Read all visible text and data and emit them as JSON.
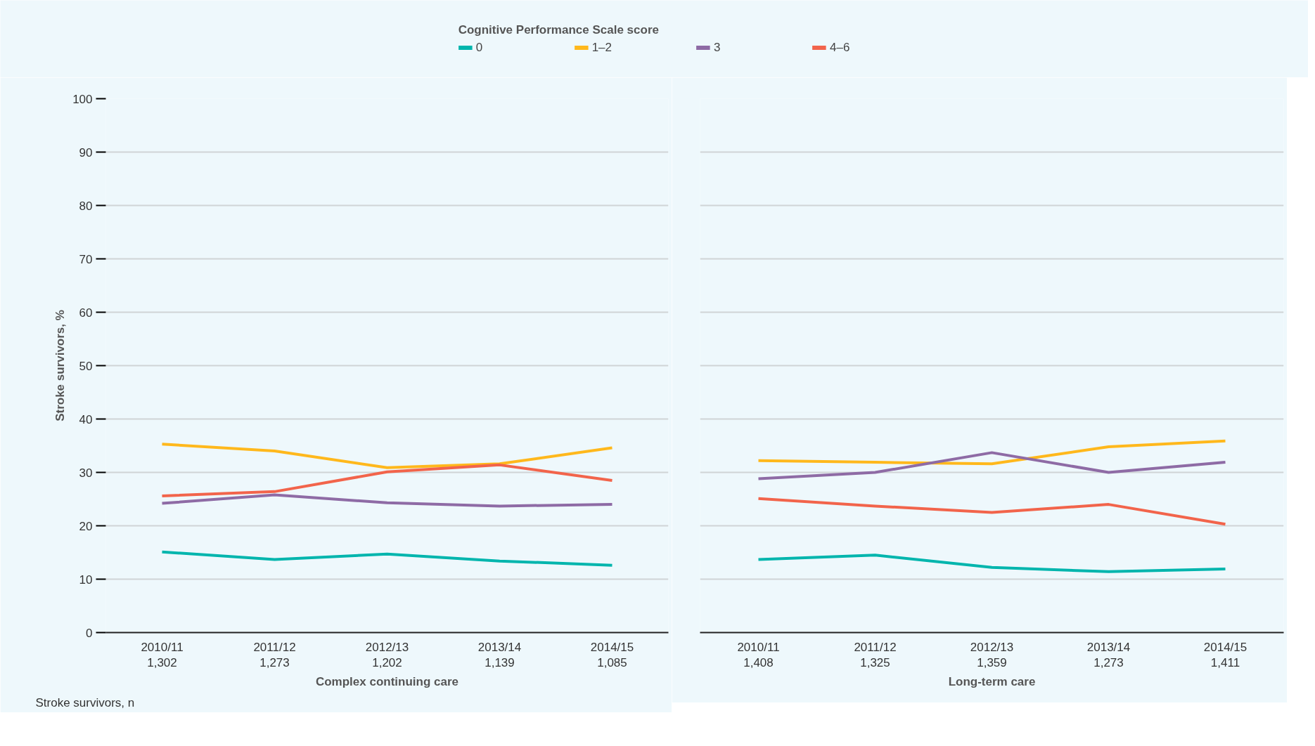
{
  "chart_data": [
    {
      "type": "line",
      "ylabel": "Stroke survivors, %",
      "xlabel": "Complex continuing care",
      "legend_title": "Cognitive Performance Scale score",
      "legend": "top",
      "categories": [
        "2010/11\n1,302",
        "2011/12\n1,273",
        "2012/13\n1,202",
        "2013/14\n1,139",
        "2014/15\n1,085"
      ],
      "annotations": [
        "Stroke survivors, n"
      ],
      "ylim": [
        0,
        100
      ],
      "yticks": [
        0,
        10,
        20,
        30,
        40,
        50,
        60,
        70,
        80,
        90,
        100
      ],
      "grid": "y",
      "line_style": "solid",
      "series": [
        {
          "name": "0",
          "color": "#00b5ad",
          "values": [
            15.1,
            13.7,
            14.7,
            13.4,
            12.6
          ]
        },
        {
          "name": "1–2",
          "color": "#ffb81c",
          "values": [
            35.3,
            34.0,
            30.9,
            31.6,
            34.6
          ]
        },
        {
          "name": "3",
          "color": "#8e6ba5",
          "values": [
            24.2,
            25.8,
            24.3,
            23.7,
            24.0
          ]
        },
        {
          "name": "4–6",
          "color": "#f2644b",
          "values": [
            25.6,
            26.4,
            30.1,
            31.4,
            28.5
          ]
        }
      ]
    },
    {
      "type": "line",
      "xlabel": "Long-term care",
      "tick_labels": "x",
      "categories": [
        "2010/11\n1,408",
        "2011/12\n1,325",
        "2012/13\n1,359",
        "2013/14\n1,273",
        "2014/15\n1,411"
      ],
      "ylim": [
        0,
        100
      ],
      "yticks": [
        0,
        10,
        20,
        30,
        40,
        50,
        60,
        70,
        80,
        90,
        100
      ],
      "grid": "y",
      "line_style": "solid",
      "series": [
        {
          "color": "#00b5ad",
          "values": [
            13.7,
            14.5,
            12.2,
            11.4,
            11.9
          ]
        },
        {
          "color": "#ffb81c",
          "values": [
            32.2,
            31.9,
            31.6,
            34.8,
            35.9
          ]
        },
        {
          "color": "#8e6ba5",
          "values": [
            28.8,
            30.0,
            33.7,
            30.0,
            31.9
          ]
        },
        {
          "color": "#f2644b",
          "values": [
            25.1,
            23.7,
            22.5,
            24.0,
            20.3
          ]
        }
      ]
    }
  ]
}
